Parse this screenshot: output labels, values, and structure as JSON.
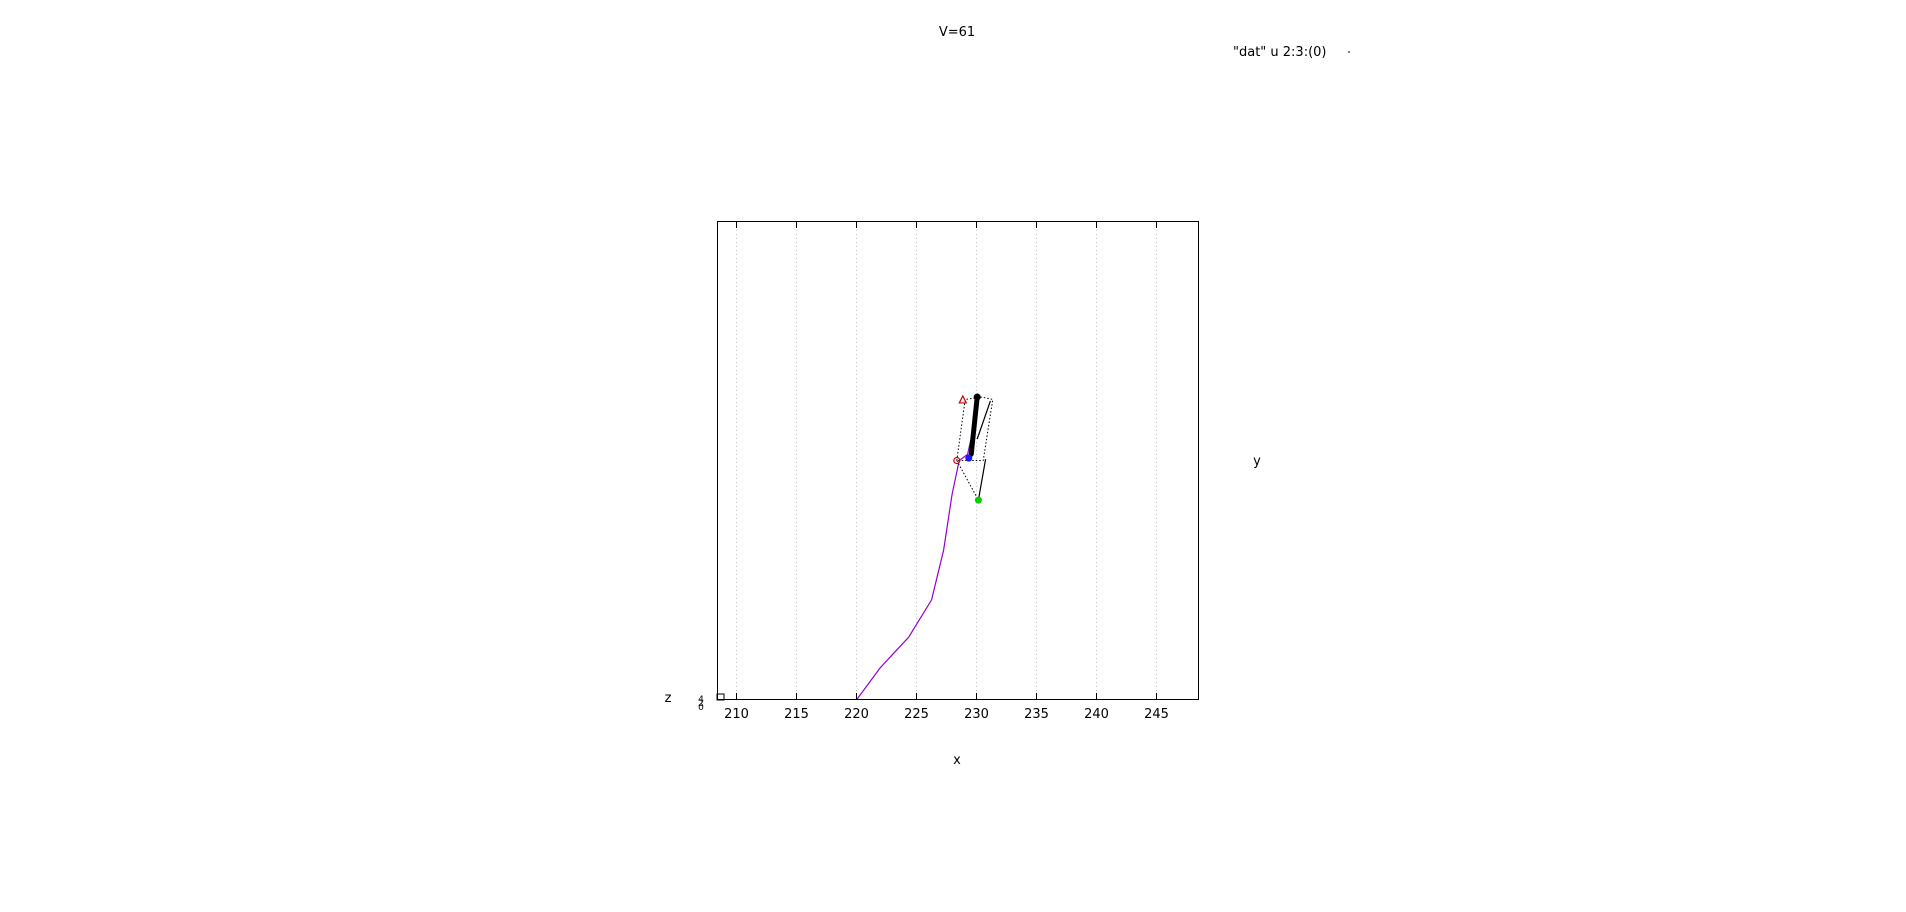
{
  "chart_data": {
    "type": "line",
    "title": "V=61",
    "legend": {
      "entry": "\"dat\" u 2:3:(0)",
      "placement": "top-right"
    },
    "xlabel": "x",
    "ylabel": "y",
    "zlabel": "z",
    "xlim": [
      208.5,
      248.5
    ],
    "ylim": [
      0,
      100
    ],
    "xticks": [
      210,
      215,
      220,
      225,
      230,
      235,
      240,
      245
    ],
    "grid": "vertical dotted",
    "series": [
      {
        "role": "trajectory",
        "color": "#9400d3",
        "style": "solid",
        "points": [
          [
            220.1,
            0
          ],
          [
            222,
            6.5
          ],
          [
            224.4,
            13
          ],
          [
            226.3,
            20.8
          ],
          [
            227.3,
            31.2
          ],
          [
            228.0,
            42.8
          ],
          [
            228.6,
            50
          ],
          [
            229.3,
            51.3
          ],
          [
            229.6,
            54.7
          ]
        ]
      },
      {
        "role": "bold-link",
        "color": "#000000",
        "style": "thick",
        "points": [
          [
            229.6,
            51.3
          ],
          [
            230.1,
            63.3
          ]
        ]
      },
      {
        "role": "thin-link",
        "color": "#000000",
        "style": "solid",
        "points": [
          [
            230.1,
            54.5
          ],
          [
            231.2,
            62.5
          ]
        ]
      },
      {
        "role": "lower-link",
        "color": "#000000",
        "style": "solid",
        "points": [
          [
            230.2,
            41.7
          ],
          [
            230.8,
            50.3
          ]
        ]
      },
      {
        "role": "box-outline",
        "color": "#000000",
        "style": "dotted",
        "points": [
          [
            228.4,
            50
          ],
          [
            229.1,
            62.8
          ],
          [
            230.5,
            63.3
          ],
          [
            231.4,
            62.8
          ],
          [
            230.6,
            50
          ],
          [
            228.4,
            50
          ]
        ]
      },
      {
        "role": "diagonal",
        "color": "#000000",
        "style": "dotted",
        "points": [
          [
            228.4,
            50
          ],
          [
            230.2,
            41.7
          ]
        ]
      }
    ],
    "markers": [
      {
        "x": 229.4,
        "y": 50.5,
        "color": "#1a1aff",
        "symbol": "circle"
      },
      {
        "x": 228.4,
        "y": 50.0,
        "color": "#cc0000",
        "symbol": "circle-open"
      },
      {
        "x": 228.9,
        "y": 62.7,
        "color": "#cc0000",
        "symbol": "triangle-open"
      },
      {
        "x": 230.2,
        "y": 41.7,
        "color": "#00cc00",
        "symbol": "circle"
      },
      {
        "x": 230.1,
        "y": 63.3,
        "color": "#000000",
        "symbol": "circle"
      }
    ]
  }
}
